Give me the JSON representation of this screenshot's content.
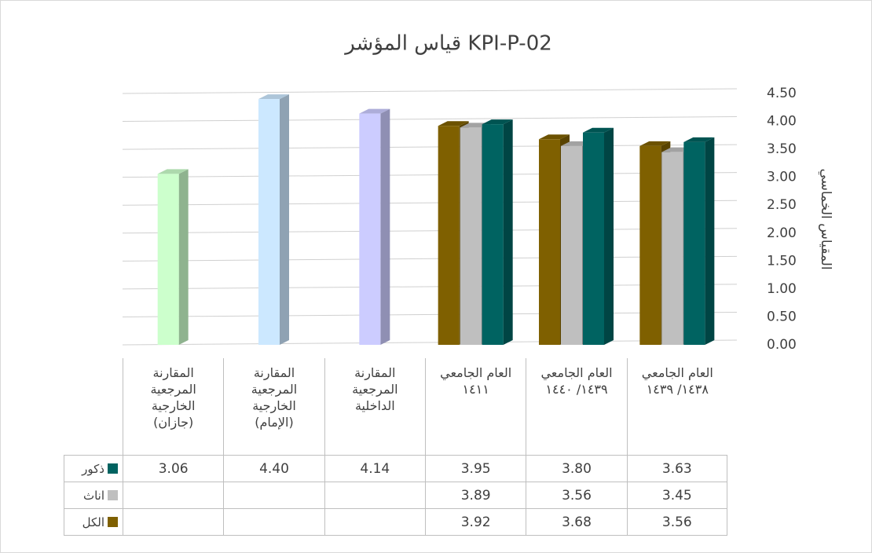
{
  "chart_data": {
    "type": "bar3d",
    "title": "قياس المؤشر KPI-P-02",
    "y_label": "المقياس الخماسي",
    "categories": [
      "المقارنة المرجعية الخارجية (جازان)",
      "المقارنة المرجعية الخارجية (الإمام)",
      "المقارنة المرجعية الداخلية",
      "العام الجامعي ١٤١١",
      "العام الجامعي ١٤٣٩/ ١٤٤٠",
      "العام الجامعي ١٤٣٨/ ١٤٣٩"
    ],
    "series": [
      {
        "name": "ذكور",
        "color": "#006361",
        "point_colors": [
          "#ccffcc",
          "#cce8ff",
          "#ccccff",
          "#006361",
          "#006361",
          "#006361"
        ],
        "values": [
          3.06,
          4.4,
          4.14,
          3.95,
          3.8,
          3.63
        ],
        "value_labels": [
          "3.06",
          "4.40",
          "4.14",
          "3.95",
          "3.80",
          "3.63"
        ]
      },
      {
        "name": "اناث",
        "color": "#bfbfbf",
        "values": [
          null,
          null,
          null,
          3.89,
          3.56,
          3.45
        ],
        "value_labels": [
          null,
          null,
          null,
          "3.89",
          "3.56",
          "3.45"
        ]
      },
      {
        "name": "الكل",
        "color": "#7f6000",
        "values": [
          null,
          null,
          null,
          3.92,
          3.68,
          3.56
        ],
        "value_labels": [
          null,
          null,
          null,
          "3.92",
          "3.68",
          "3.56"
        ]
      }
    ],
    "ylim": [
      0,
      4.5
    ],
    "yticks": [
      {
        "value": 0,
        "label": "0.00"
      },
      {
        "value": 0.5,
        "label": "0.50"
      },
      {
        "value": 1,
        "label": "1.00"
      },
      {
        "value": 1.5,
        "label": "1.50"
      },
      {
        "value": 2,
        "label": "2.00"
      },
      {
        "value": 2.5,
        "label": "2.50"
      },
      {
        "value": 3,
        "label": "3.00"
      },
      {
        "value": 3.5,
        "label": "3.50"
      },
      {
        "value": 4,
        "label": "4.00"
      },
      {
        "value": 4.5,
        "label": "4.50"
      }
    ],
    "grid": true
  }
}
